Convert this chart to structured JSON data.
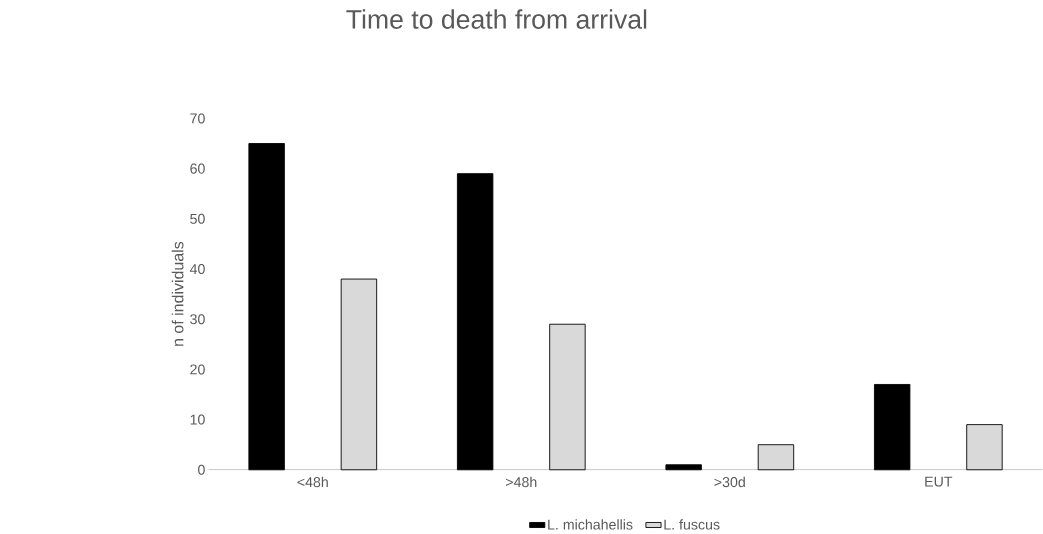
{
  "chart_data": {
    "type": "bar",
    "title": "Time to death from arrival",
    "ylabel": "n of individuals",
    "categories": [
      "<48h",
      ">48h",
      ">30d",
      "EUT"
    ],
    "series": [
      {
        "name": "L. michahellis",
        "color": "#000000",
        "values": [
          65,
          59,
          1,
          17
        ]
      },
      {
        "name": "L. fuscus",
        "color": "#d9d9d9",
        "values": [
          38,
          29,
          5,
          9
        ]
      }
    ],
    "ylim": [
      0,
      70
    ],
    "yticks": [
      0,
      10,
      20,
      30,
      40,
      50,
      60,
      70
    ],
    "legend": "bottom"
  }
}
